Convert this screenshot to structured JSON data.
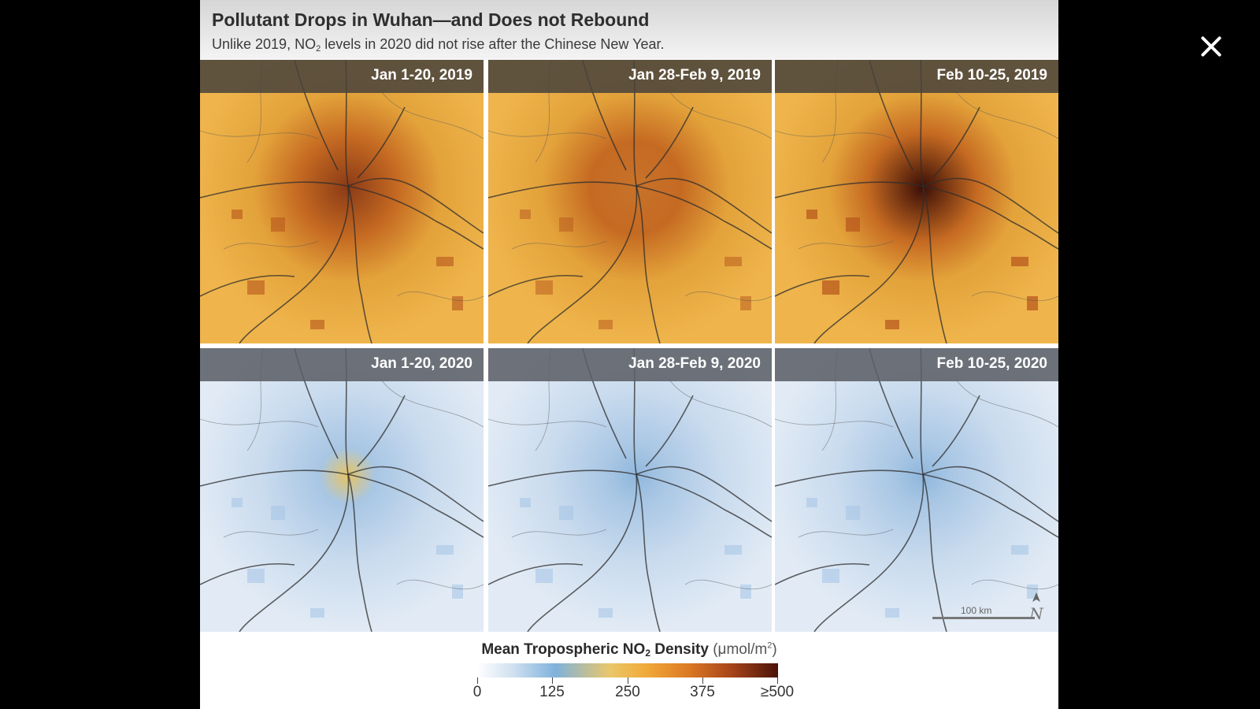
{
  "viewer": {
    "close_label": "close"
  },
  "figure": {
    "title": "Pollutant Drops in Wuhan—and Does not Rebound",
    "subtitle_pre": "Unlike 2019, NO",
    "subtitle_sub": "2",
    "subtitle_post": " levels in 2020 did not rise after the Chinese New Year.",
    "panels": [
      {
        "label": "Jan 1-20, 2019",
        "year": "2019",
        "intensity": 0.72
      },
      {
        "label": "Jan 28-Feb 9, 2019",
        "year": "2019",
        "intensity": 0.45
      },
      {
        "label": "Feb 10-25, 2019",
        "year": "2019",
        "intensity": 1.0
      },
      {
        "label": "Jan 1-20, 2020",
        "year": "2020",
        "intensity": 0.35
      },
      {
        "label": "Jan 28-Feb 9, 2020",
        "year": "2020",
        "intensity": 0.12
      },
      {
        "label": "Feb 10-25, 2020",
        "year": "2020",
        "intensity": 0.15
      }
    ],
    "scale_bar_label": "100 km",
    "north_label": "N",
    "legend": {
      "title_pre": "Mean Tropospheric NO",
      "title_sub": "2",
      "title_post": " Density",
      "units_pre": "(μmol/m",
      "units_sup": "2",
      "units_post": ")",
      "ticks": [
        "0",
        "125",
        "250",
        "375",
        "≥500"
      ],
      "colors": [
        "#ffffff",
        "#7fb2dc",
        "#f1aa3a",
        "#dc7a24",
        "#4a1208"
      ]
    }
  }
}
